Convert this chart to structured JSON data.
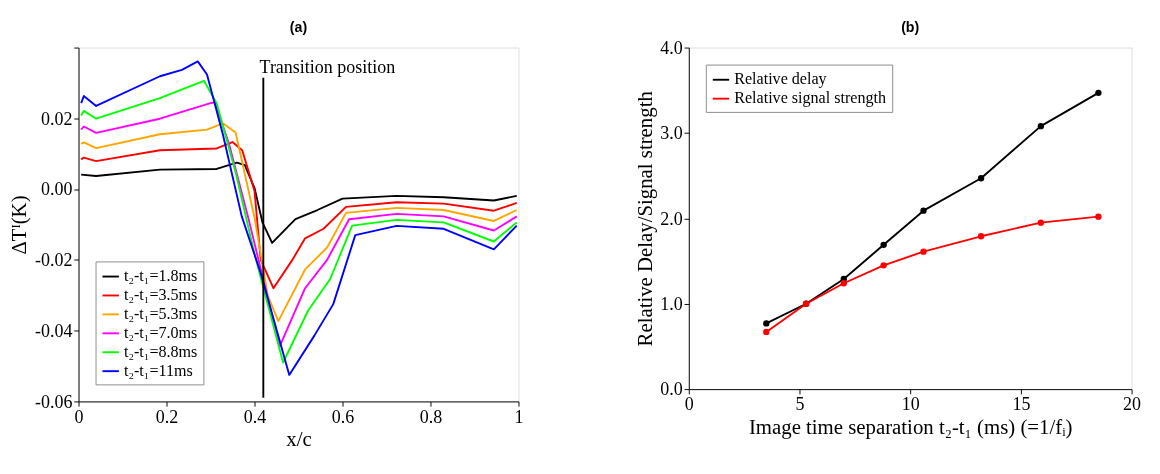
{
  "chart_data": [
    {
      "type": "line",
      "title": "(a)",
      "xlabel": "x/c",
      "ylabel": "ΔTᴵ(K)",
      "xlim": [
        0,
        1
      ],
      "ylim": [
        -0.06,
        0.04
      ],
      "xticks": [
        0,
        0.2,
        0.4,
        0.6,
        0.8,
        1
      ],
      "yticks": [
        -0.06,
        -0.04,
        -0.02,
        {
          "value": 0,
          "label": "0.00"
        },
        0.02,
        {
          "value": 0.04,
          "label": null
        }
      ],
      "grid": false,
      "legend": "bottom left",
      "marker": "none",
      "line_style": "solid",
      "ref_lines": [
        {
          "axis": "x",
          "value": 0.42,
          "label": "Transition position",
          "color": "#000000"
        }
      ],
      "series": [
        {
          "name": "t₂-t₁=1.8ms",
          "color": "#000000",
          "x": [
            0.006,
            0.04,
            0.185,
            0.314,
            0.36,
            0.378,
            0.4,
            0.418,
            0.44,
            0.493,
            0.543,
            0.6,
            0.723,
            0.83,
            0.944,
            0.996
          ],
          "values": [
            0.0041,
            0.0037,
            0.0055,
            0.0057,
            0.0075,
            0.0068,
            0.0003,
            -0.0094,
            -0.0152,
            -0.0085,
            -0.0059,
            -0.0027,
            -0.0019,
            -0.0023,
            -0.0032,
            -0.0019
          ]
        },
        {
          "name": "t₂-t₁=3.5ms",
          "color": "#ff0000",
          "x": [
            0.006,
            0.012,
            0.04,
            0.185,
            0.314,
            0.35,
            0.372,
            0.4,
            0.414,
            0.443,
            0.486,
            0.515,
            0.557,
            0.608,
            0.723,
            0.83,
            0.944,
            0.996
          ],
          "values": [
            0.0084,
            0.0089,
            0.0079,
            0.011,
            0.0115,
            0.0133,
            0.011,
            -0.0005,
            -0.02,
            -0.028,
            -0.02,
            -0.0139,
            -0.0112,
            -0.005,
            -0.0037,
            -0.0041,
            -0.0061,
            -0.0039
          ]
        },
        {
          "name": "t₂-t₁=5.3ms",
          "color": "#ffa500",
          "x": [
            0.006,
            0.012,
            0.04,
            0.185,
            0.292,
            0.328,
            0.357,
            0.4,
            0.43,
            0.454,
            0.515,
            0.565,
            0.608,
            0.723,
            0.83,
            0.944,
            0.996
          ],
          "values": [
            0.0128,
            0.0132,
            0.0116,
            0.0155,
            0.0168,
            0.0186,
            0.016,
            -0.008,
            -0.03,
            -0.0373,
            -0.0227,
            -0.0165,
            -0.0067,
            -0.0053,
            -0.0059,
            -0.009,
            -0.0059
          ]
        },
        {
          "name": "t₂-t₁=7.0ms",
          "color": "#ff00ff",
          "x": [
            0.006,
            0.012,
            0.04,
            0.185,
            0.3,
            0.31,
            0.342,
            0.385,
            0.457,
            0.515,
            0.565,
            0.615,
            0.723,
            0.83,
            0.944,
            0.996
          ],
          "values": [
            0.0168,
            0.0177,
            0.0159,
            0.0199,
            0.0243,
            0.0245,
            0.0128,
            -0.0077,
            -0.0445,
            -0.028,
            -0.02,
            -0.0085,
            -0.007,
            -0.0077,
            -0.0117,
            -0.0077
          ]
        },
        {
          "name": "t₂-t₁=8.8ms",
          "color": "#00ff00",
          "x": [
            0.006,
            0.012,
            0.04,
            0.185,
            0.285,
            0.314,
            0.357,
            0.4,
            0.465,
            0.522,
            0.572,
            0.622,
            0.723,
            0.83,
            0.944,
            0.996
          ],
          "values": [
            0.0208,
            0.0221,
            0.0199,
            0.0257,
            0.0306,
            0.0243,
            0.0048,
            -0.0183,
            -0.049,
            -0.0343,
            -0.0254,
            -0.0103,
            -0.0087,
            -0.0094,
            -0.0148,
            -0.0094
          ]
        },
        {
          "name": "t₂-t₁=11ms",
          "color": "#0000ff",
          "x": [
            0.006,
            0.012,
            0.04,
            0.185,
            0.235,
            0.271,
            0.292,
            0.328,
            0.371,
            0.414,
            0.479,
            0.536,
            0.579,
            0.629,
            0.723,
            0.83,
            0.944,
            0.996
          ],
          "values": [
            0.0243,
            0.0263,
            0.0235,
            0.0319,
            0.0337,
            0.0361,
            0.0324,
            0.0155,
            -0.0077,
            -0.0237,
            -0.0525,
            -0.0414,
            -0.0325,
            -0.013,
            -0.0104,
            -0.0112,
            -0.017,
            -0.0103
          ]
        }
      ]
    },
    {
      "type": "line",
      "title": "(b)",
      "xlabel": "Image time separation t₂-t₁ (ms) (=1/fᵢ)",
      "ylabel": "Relative Delay/Signal strength",
      "xlim": [
        0,
        20
      ],
      "ylim": [
        0,
        4
      ],
      "xticks": [
        0,
        5,
        10,
        15,
        20
      ],
      "yticks": [
        {
          "value": 0,
          "label": "0.0"
        },
        {
          "value": 1,
          "label": "1.0"
        },
        {
          "value": 2,
          "label": "2.0"
        },
        {
          "value": 3,
          "label": "3.0"
        },
        {
          "value": 4,
          "label": "4.0"
        }
      ],
      "grid": false,
      "legend": "top left",
      "marker": "circle",
      "line_style": "solid",
      "x": [
        3.5,
        5.3,
        7.0,
        8.8,
        10.6,
        13.2,
        15.9,
        18.5
      ],
      "series": [
        {
          "name": "Relative delay",
          "color": "#000000",
          "values": [
            0.77,
            1.0,
            1.29,
            1.69,
            2.09,
            2.47,
            3.08,
            3.47
          ]
        },
        {
          "name": "Relative signal strength",
          "color": "#ff0000",
          "values": [
            0.67,
            1.0,
            1.24,
            1.45,
            1.61,
            1.79,
            1.95,
            2.02
          ]
        }
      ]
    }
  ]
}
